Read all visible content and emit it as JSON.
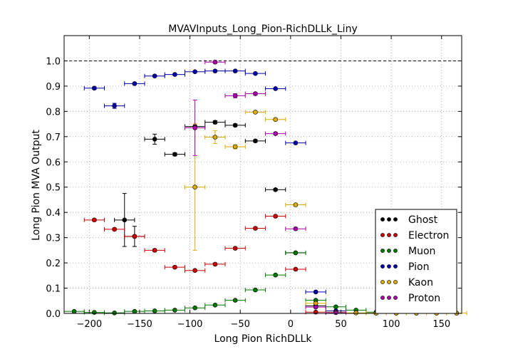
{
  "chart_data": {
    "type": "scatter",
    "title": "MVAVInputs_Long_Pion-RichDLLk_Liny",
    "xlabel": "Long Pion RichDLLk",
    "ylabel": "Long Pion MVA Output",
    "xlim": [
      -225,
      170
    ],
    "ylim": [
      0,
      1.1
    ],
    "xticks": [
      -200,
      -150,
      -100,
      -50,
      0,
      50,
      100,
      150
    ],
    "xtick_labels": [
      "−200",
      "−150",
      "−100",
      "−50",
      "0",
      "50",
      "100",
      "150"
    ],
    "yticks": [
      0,
      0.1,
      0.2,
      0.3,
      0.4,
      0.5,
      0.6,
      0.7,
      0.8,
      0.9,
      1.0
    ],
    "ytick_labels": [
      "0.0",
      "0.1",
      "0.2",
      "0.3",
      "0.4",
      "0.5",
      "0.6",
      "0.7",
      "0.8",
      "0.9",
      "1.0"
    ],
    "x_halfwidth": 10,
    "reference_line": 1.0,
    "grid": true,
    "legend_position": "lower-right",
    "series": [
      {
        "name": "Ghost",
        "color": "#000000",
        "points": [
          {
            "x": -165,
            "y": 0.37,
            "err": 0.105
          },
          {
            "x": -155,
            "y": 0.305,
            "err": 0.04
          },
          {
            "x": -135,
            "y": 0.69,
            "err": 0.02
          },
          {
            "x": -115,
            "y": 0.63,
            "err": 0.006
          },
          {
            "x": -95,
            "y": 0.74,
            "err": 0.01
          },
          {
            "x": -75,
            "y": 0.757,
            "err": 0.006
          },
          {
            "x": -55,
            "y": 0.745,
            "err": 0.005
          },
          {
            "x": -35,
            "y": 0.683,
            "err": 0.005
          },
          {
            "x": -15,
            "y": 0.49,
            "err": 0.004
          },
          {
            "x": 5,
            "y": 0.24,
            "err": 0.003
          },
          {
            "x": 25,
            "y": 0.03,
            "err": 0.003
          },
          {
            "x": 45,
            "y": 0.004,
            "err": 0.001
          }
        ]
      },
      {
        "name": "Electron",
        "color": "#cc0000",
        "points": [
          {
            "x": -195,
            "y": 0.37,
            "err": 0.005
          },
          {
            "x": -175,
            "y": 0.333,
            "err": 0.005
          },
          {
            "x": -155,
            "y": 0.305,
            "err": 0.005
          },
          {
            "x": -135,
            "y": 0.25,
            "err": 0.005
          },
          {
            "x": -115,
            "y": 0.183,
            "err": 0.004
          },
          {
            "x": -95,
            "y": 0.17,
            "err": 0.004
          },
          {
            "x": -75,
            "y": 0.195,
            "err": 0.004
          },
          {
            "x": -55,
            "y": 0.258,
            "err": 0.004
          },
          {
            "x": -35,
            "y": 0.337,
            "err": 0.004
          },
          {
            "x": -15,
            "y": 0.385,
            "err": 0.004
          },
          {
            "x": 5,
            "y": 0.175,
            "err": 0.003
          },
          {
            "x": 25,
            "y": 0.005,
            "err": 0.001
          }
        ]
      },
      {
        "name": "Muon",
        "color": "#007700",
        "points": [
          {
            "x": -215,
            "y": 0.008,
            "err": 0.001
          },
          {
            "x": -195,
            "y": 0.004,
            "err": 0.001
          },
          {
            "x": -175,
            "y": 0.002,
            "err": 0.001
          },
          {
            "x": -155,
            "y": 0.008,
            "err": 0.001
          },
          {
            "x": -135,
            "y": 0.01,
            "err": 0.001
          },
          {
            "x": -115,
            "y": 0.013,
            "err": 0.001
          },
          {
            "x": -95,
            "y": 0.022,
            "err": 0.002
          },
          {
            "x": -75,
            "y": 0.033,
            "err": 0.002
          },
          {
            "x": -55,
            "y": 0.052,
            "err": 0.002
          },
          {
            "x": -35,
            "y": 0.093,
            "err": 0.002
          },
          {
            "x": -15,
            "y": 0.152,
            "err": 0.002
          },
          {
            "x": 5,
            "y": 0.24,
            "err": 0.003
          },
          {
            "x": 25,
            "y": 0.052,
            "err": 0.002
          },
          {
            "x": 45,
            "y": 0.026,
            "err": 0.002
          },
          {
            "x": 65,
            "y": 0.013,
            "err": 0.001
          },
          {
            "x": 85,
            "y": 0.005,
            "err": 0.001
          },
          {
            "x": 105,
            "y": 0.002,
            "err": 0.001
          }
        ]
      },
      {
        "name": "Pion",
        "color": "#0000aa",
        "points": [
          {
            "x": -195,
            "y": 0.892,
            "err": 0.005
          },
          {
            "x": -175,
            "y": 0.822,
            "err": 0.01
          },
          {
            "x": -155,
            "y": 0.91,
            "err": 0.004
          },
          {
            "x": -135,
            "y": 0.94,
            "err": 0.003
          },
          {
            "x": -115,
            "y": 0.946,
            "err": 0.003
          },
          {
            "x": -95,
            "y": 0.957,
            "err": 0.003
          },
          {
            "x": -75,
            "y": 0.96,
            "err": 0.003
          },
          {
            "x": -55,
            "y": 0.96,
            "err": 0.003
          },
          {
            "x": -35,
            "y": 0.95,
            "err": 0.003
          },
          {
            "x": -15,
            "y": 0.89,
            "err": 0.003
          },
          {
            "x": 5,
            "y": 0.675,
            "err": 0.003
          },
          {
            "x": 25,
            "y": 0.085,
            "err": 0.002
          },
          {
            "x": 45,
            "y": 0.01,
            "err": 0.001
          }
        ]
      },
      {
        "name": "Kaon",
        "color": "#ddaa00",
        "points": [
          {
            "x": -95,
            "y": 0.5,
            "err": 0.25
          },
          {
            "x": -75,
            "y": 0.698,
            "err": 0.025
          },
          {
            "x": -55,
            "y": 0.66,
            "err": 0.008
          },
          {
            "x": -35,
            "y": 0.797,
            "err": 0.005
          },
          {
            "x": -15,
            "y": 0.768,
            "err": 0.005
          },
          {
            "x": 5,
            "y": 0.43,
            "err": 0.004
          },
          {
            "x": 25,
            "y": 0.04,
            "err": 0.002
          },
          {
            "x": 45,
            "y": 0.005,
            "err": 0.001
          },
          {
            "x": 65,
            "y": 0.002,
            "err": 0.001
          },
          {
            "x": 85,
            "y": 0.001,
            "err": 0.001
          },
          {
            "x": 105,
            "y": 0.001,
            "err": 0.001
          },
          {
            "x": 125,
            "y": 0.001,
            "err": 0.001
          },
          {
            "x": 145,
            "y": 0.001,
            "err": 0.001
          },
          {
            "x": 165,
            "y": 0.001,
            "err": 0.001
          }
        ]
      },
      {
        "name": "Proton",
        "color": "#aa00aa",
        "points": [
          {
            "x": -95,
            "y": 0.735,
            "err": 0.11
          },
          {
            "x": -75,
            "y": 0.995,
            "err": 0.005
          },
          {
            "x": -55,
            "y": 0.862,
            "err": 0.008
          },
          {
            "x": -35,
            "y": 0.87,
            "err": 0.005
          },
          {
            "x": -15,
            "y": 0.712,
            "err": 0.005
          },
          {
            "x": 5,
            "y": 0.335,
            "err": 0.004
          },
          {
            "x": 25,
            "y": 0.025,
            "err": 0.002
          },
          {
            "x": 45,
            "y": 0.003,
            "err": 0.001
          }
        ]
      }
    ]
  }
}
